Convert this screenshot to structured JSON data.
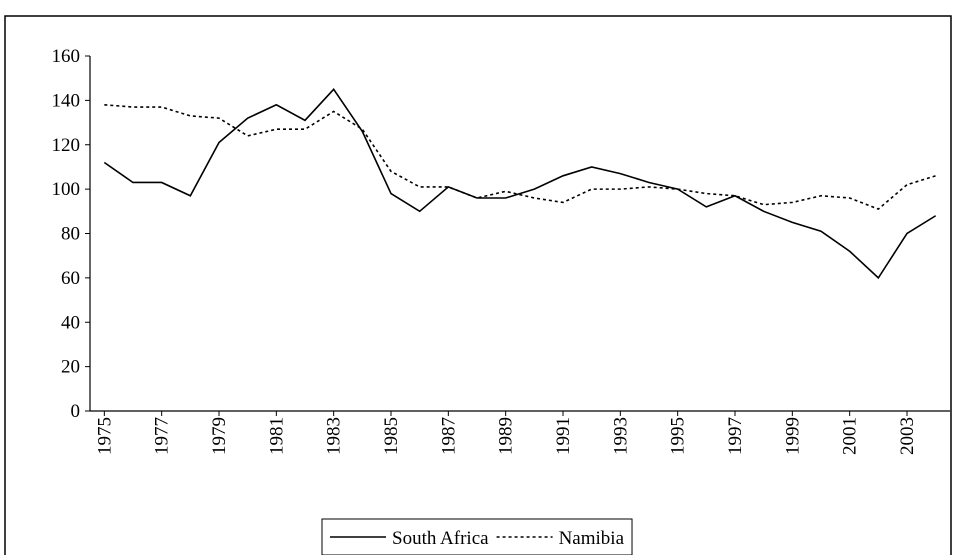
{
  "chart_data": {
    "type": "line",
    "x": [
      1975,
      1976,
      1977,
      1978,
      1979,
      1980,
      1981,
      1982,
      1983,
      1984,
      1985,
      1986,
      1987,
      1988,
      1989,
      1990,
      1991,
      1992,
      1993,
      1994,
      1995,
      1996,
      1997,
      1998,
      1999,
      2000,
      2001,
      2002,
      2003,
      2004
    ],
    "series": [
      {
        "name": "South Africa",
        "color": "#000000",
        "line_style": "solid",
        "values": [
          112,
          103,
          103,
          97,
          121,
          132,
          138,
          131,
          145,
          126,
          98,
          90,
          101,
          96,
          96,
          100,
          106,
          110,
          107,
          103,
          100,
          92,
          97,
          90,
          85,
          81,
          72,
          60,
          80,
          88
        ]
      },
      {
        "name": "Namibia",
        "color": "#000000",
        "line_style": "dotted",
        "values": [
          138,
          137,
          137,
          133,
          132,
          124,
          127,
          127,
          135,
          127,
          108,
          101,
          101,
          96,
          99,
          96,
          94,
          100,
          100,
          101,
          100,
          98,
          97,
          93,
          94,
          97,
          96,
          91,
          102,
          106
        ]
      }
    ],
    "xlim": [
      1974.5,
      2004.5
    ],
    "xticks": [
      1975,
      1977,
      1979,
      1981,
      1983,
      1985,
      1987,
      1989,
      1991,
      1993,
      1995,
      1997,
      1999,
      2001,
      2003
    ],
    "ylim": [
      0,
      160
    ],
    "yticks": [
      0,
      20,
      40,
      60,
      80,
      100,
      120,
      140,
      160
    ],
    "grid": false,
    "legend": "bottom"
  }
}
